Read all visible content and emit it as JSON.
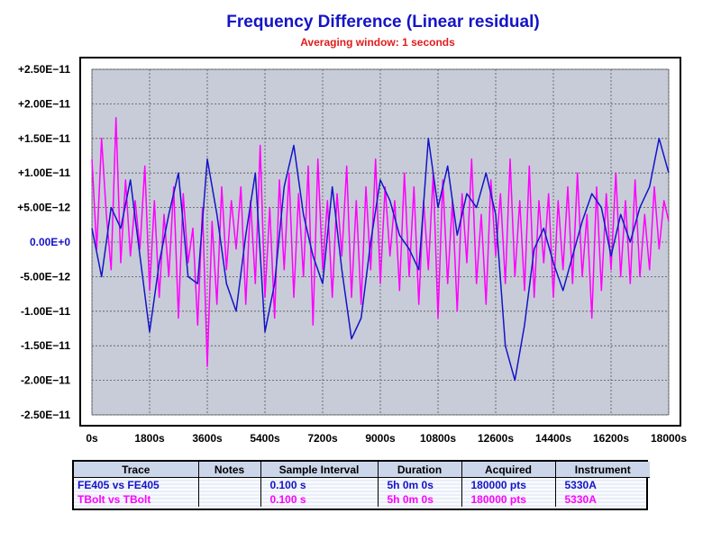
{
  "chart_data": {
    "type": "line",
    "title": "Frequency Difference (Linear residual)",
    "subtitle": "Averaging window: 1 seconds",
    "xlim": [
      0,
      18000
    ],
    "ylim": [
      -2.5e-11,
      2.5e-11
    ],
    "x_ticks": [
      0,
      1800,
      3600,
      5400,
      7200,
      9000,
      10800,
      12600,
      14400,
      16200,
      18000
    ],
    "x_tick_labels": [
      "0s",
      "1800s",
      "3600s",
      "5400s",
      "7200s",
      "9000s",
      "10800s",
      "12600s",
      "14400s",
      "16200s",
      "18000s"
    ],
    "y_ticks": [
      2.5e-11,
      2e-11,
      1.5e-11,
      1e-11,
      5e-12,
      0,
      -5e-12,
      -1e-11,
      -1.5e-11,
      -2e-11,
      -2.5e-11
    ],
    "y_tick_labels": [
      "+2.50E−11",
      "+2.00E−11",
      "+1.50E−11",
      "+1.00E−11",
      "+5.00E−12",
      "0.00E+0",
      "-5.00E−12",
      "-1.00E−11",
      "-1.50E−11",
      "-2.00E−11",
      "-2.50E−11"
    ],
    "grid": true,
    "colors": {
      "plot_bg": "#c8ccd8",
      "series1": "#1414c8",
      "series2": "#ff00ff",
      "title": "#1414c8",
      "subtitle": "#e01c1c"
    },
    "series": [
      {
        "name": "FE405 vs FE405",
        "color": "#1414c8",
        "x": [
          0,
          300,
          600,
          900,
          1200,
          1500,
          1800,
          2100,
          2400,
          2700,
          3000,
          3300,
          3600,
          3900,
          4200,
          4500,
          4800,
          5100,
          5400,
          5700,
          6000,
          6300,
          6600,
          6900,
          7200,
          7500,
          7800,
          8100,
          8400,
          8700,
          9000,
          9300,
          9600,
          9900,
          10200,
          10500,
          10800,
          11100,
          11400,
          11700,
          12000,
          12300,
          12600,
          12900,
          13200,
          13500,
          13800,
          14100,
          14400,
          14700,
          15000,
          15300,
          15600,
          15900,
          16200,
          16500,
          16800,
          17100,
          17400,
          17700,
          18000
        ],
        "values": [
          2e-12,
          -5e-12,
          5e-12,
          2e-12,
          9e-12,
          -2e-12,
          -1.3e-11,
          -3e-12,
          4e-12,
          1e-11,
          -5e-12,
          -6e-12,
          1.2e-11,
          4e-12,
          -6e-12,
          -1e-11,
          1e-12,
          1e-11,
          -1.3e-11,
          -6e-12,
          8e-12,
          1.4e-11,
          4e-12,
          -2e-12,
          -6e-12,
          8e-12,
          -4e-12,
          -1.4e-11,
          -1.1e-11,
          0,
          9e-12,
          6e-12,
          1e-12,
          -1e-12,
          -4e-12,
          1.5e-11,
          5e-12,
          1.1e-11,
          1e-12,
          7e-12,
          5e-12,
          1e-11,
          4e-12,
          -1.5e-11,
          -2e-11,
          -1.2e-11,
          -1e-12,
          2e-12,
          -3e-12,
          -7e-12,
          -2e-12,
          3e-12,
          7e-12,
          5e-12,
          -2e-12,
          4e-12,
          0,
          5e-12,
          8e-12,
          1.5e-11,
          1e-11
        ]
      },
      {
        "name": "TBolt vs TBolt",
        "color": "#ff00ff",
        "x": [
          0,
          150,
          300,
          450,
          600,
          750,
          900,
          1050,
          1200,
          1350,
          1500,
          1650,
          1800,
          1950,
          2100,
          2250,
          2400,
          2550,
          2700,
          2850,
          3000,
          3150,
          3300,
          3450,
          3600,
          3750,
          3900,
          4050,
          4200,
          4350,
          4500,
          4650,
          4800,
          4950,
          5100,
          5250,
          5400,
          5550,
          5700,
          5850,
          6000,
          6150,
          6300,
          6450,
          6600,
          6750,
          6900,
          7050,
          7200,
          7350,
          7500,
          7650,
          7800,
          7950,
          8100,
          8250,
          8400,
          8550,
          8700,
          8850,
          9000,
          9150,
          9300,
          9450,
          9600,
          9750,
          9900,
          10050,
          10200,
          10350,
          10500,
          10650,
          10800,
          10950,
          11100,
          11250,
          11400,
          11550,
          11700,
          11850,
          12000,
          12150,
          12300,
          12450,
          12600,
          12750,
          12900,
          13050,
          13200,
          13350,
          13500,
          13650,
          13800,
          13950,
          14100,
          14250,
          14400,
          14550,
          14700,
          14850,
          15000,
          15150,
          15300,
          15450,
          15600,
          15750,
          15900,
          16050,
          16200,
          16350,
          16500,
          16650,
          16800,
          16950,
          17100,
          17250,
          17400,
          17550,
          17700,
          17850,
          18000
        ],
        "values": [
          1.2e-11,
          -1e-12,
          1.5e-11,
          4e-12,
          -4e-12,
          1.8e-11,
          -3e-12,
          9e-12,
          -2e-12,
          6e-12,
          -1e-12,
          1.1e-11,
          -7e-12,
          6e-12,
          -8e-12,
          4e-12,
          -5e-12,
          8e-12,
          -1.1e-11,
          7e-12,
          -3e-12,
          2e-12,
          -1.2e-11,
          5e-12,
          -1.8e-11,
          3e-12,
          -9e-12,
          8e-12,
          -4e-12,
          6e-12,
          -1e-12,
          8e-12,
          -9e-12,
          6e-12,
          -6e-12,
          1.4e-11,
          -8e-12,
          5e-12,
          -1.1e-11,
          9e-12,
          -4e-12,
          1e-11,
          -8e-12,
          7e-12,
          -5e-12,
          1.1e-11,
          -1.2e-11,
          1.2e-11,
          -4e-12,
          6e-12,
          -8e-12,
          7e-12,
          -2e-12,
          1.1e-11,
          -8e-12,
          6e-12,
          -9e-12,
          8e-12,
          -4e-12,
          1.2e-11,
          -6e-12,
          8e-12,
          -2e-12,
          6e-12,
          -7e-12,
          1e-11,
          -5e-12,
          8e-12,
          -9e-12,
          6e-12,
          -4e-12,
          1e-11,
          -1.1e-11,
          9e-12,
          -6e-12,
          6e-12,
          -1e-11,
          7e-12,
          -3e-12,
          1.2e-11,
          -6e-12,
          4e-12,
          -9e-12,
          9e-12,
          -2e-12,
          7e-12,
          -6e-12,
          1.2e-11,
          -5e-12,
          6e-12,
          -7e-12,
          1.1e-11,
          -8e-12,
          6e-12,
          -3e-12,
          7e-12,
          -8e-12,
          6e-12,
          -4e-12,
          8e-12,
          -6e-12,
          1e-11,
          -5e-12,
          4e-12,
          -1.1e-11,
          8e-12,
          -7e-12,
          7e-12,
          -4e-12,
          1e-11,
          -5e-12,
          6e-12,
          -6e-12,
          9e-12,
          -5e-12,
          4e-12,
          -4e-12,
          8e-12,
          -1e-12,
          6e-12,
          3e-12
        ]
      }
    ]
  },
  "legend_table": {
    "headers": [
      "Trace",
      "Notes",
      "Sample Interval",
      "Duration",
      "Acquired",
      "Instrument"
    ],
    "rows": [
      {
        "trace": "FE405 vs FE405",
        "notes": "",
        "interval": "0.100 s",
        "duration": "5h 0m 0s",
        "acquired": "180000 pts",
        "instrument": "5330A"
      },
      {
        "trace": "TBolt vs TBolt",
        "notes": "",
        "interval": "0.100 s",
        "duration": "5h 0m 0s",
        "acquired": "180000 pts",
        "instrument": "5330A"
      }
    ]
  }
}
